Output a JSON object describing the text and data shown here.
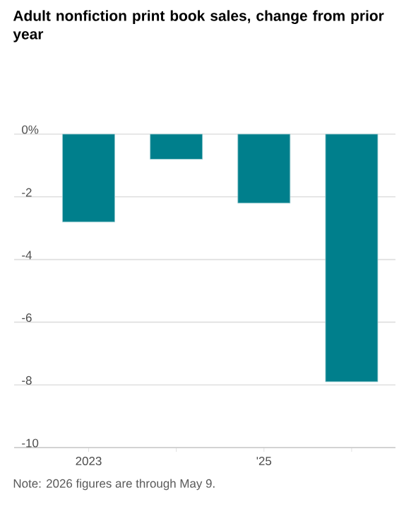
{
  "chart_data": {
    "type": "bar",
    "title": "Adult nonfiction print book sales, change from prior year",
    "categories": [
      "2023",
      null,
      "'25",
      null
    ],
    "values": [
      -2.8,
      -0.8,
      -2.2,
      -7.9
    ],
    "color": "#007f8c",
    "ylim": [
      -10,
      0
    ],
    "yticks": [
      {
        "value": 0,
        "label": "0%"
      },
      -2,
      -4,
      -6,
      -8,
      -10
    ],
    "grid": "y",
    "annotations": [
      "Note: 2026 figures are through May 9."
    ]
  }
}
